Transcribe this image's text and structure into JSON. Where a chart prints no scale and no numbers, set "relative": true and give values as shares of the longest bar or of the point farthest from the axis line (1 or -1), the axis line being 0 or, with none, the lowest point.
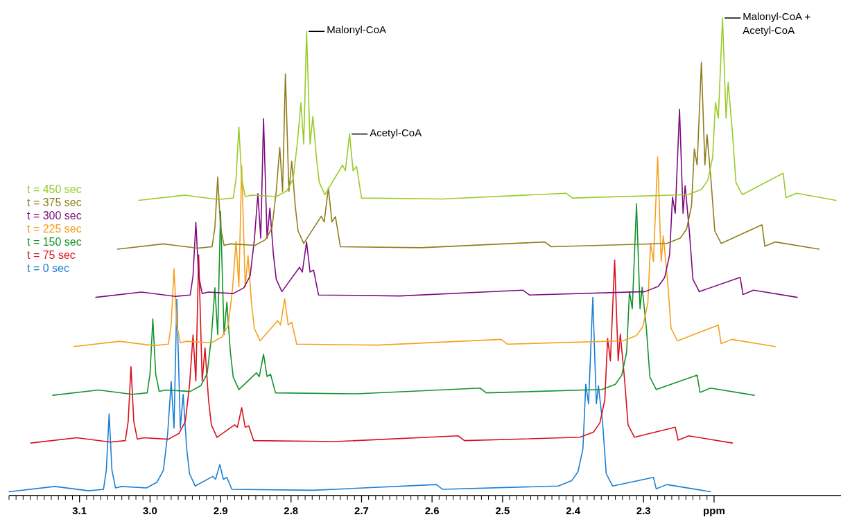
{
  "chart_data": {
    "type": "line",
    "relative": true,
    "legend": "left",
    "tick_labels": "x",
    "xlim": [
      3.2,
      2.02
    ],
    "xticks": [
      {
        "value": 3.2,
        "label": null
      },
      {
        "value": 3.19,
        "label": null
      },
      {
        "value": 3.18,
        "label": null
      },
      {
        "value": 3.17,
        "label": null
      },
      {
        "value": 3.16,
        "label": null
      },
      {
        "value": 3.15,
        "label": null
      },
      {
        "value": 3.14,
        "label": null
      },
      {
        "value": 3.13,
        "label": null
      },
      {
        "value": 3.12,
        "label": null
      },
      {
        "value": 3.11,
        "label": null
      },
      {
        "value": 3.1,
        "label": "3.1"
      },
      {
        "value": 3.09,
        "label": null
      },
      {
        "value": 3.08,
        "label": null
      },
      {
        "value": 3.07,
        "label": null
      },
      {
        "value": 3.06,
        "label": null
      },
      {
        "value": 3.05,
        "label": null
      },
      {
        "value": 3.04,
        "label": null
      },
      {
        "value": 3.03,
        "label": null
      },
      {
        "value": 3.02,
        "label": null
      },
      {
        "value": 3.01,
        "label": null
      },
      {
        "value": 3,
        "label": "3.0"
      },
      {
        "value": 2.99,
        "label": null
      },
      {
        "value": 2.98,
        "label": null
      },
      {
        "value": 2.97,
        "label": null
      },
      {
        "value": 2.96,
        "label": null
      },
      {
        "value": 2.95,
        "label": null
      },
      {
        "value": 2.94,
        "label": null
      },
      {
        "value": 2.93,
        "label": null
      },
      {
        "value": 2.92,
        "label": null
      },
      {
        "value": 2.91,
        "label": null
      },
      {
        "value": 2.9,
        "label": "2.9"
      },
      {
        "value": 2.89,
        "label": null
      },
      {
        "value": 2.88,
        "label": null
      },
      {
        "value": 2.87,
        "label": null
      },
      {
        "value": 2.86,
        "label": null
      },
      {
        "value": 2.85,
        "label": null
      },
      {
        "value": 2.84,
        "label": null
      },
      {
        "value": 2.83,
        "label": null
      },
      {
        "value": 2.82,
        "label": null
      },
      {
        "value": 2.81,
        "label": null
      },
      {
        "value": 2.8,
        "label": "2.8"
      },
      {
        "value": 2.79,
        "label": null
      },
      {
        "value": 2.78,
        "label": null
      },
      {
        "value": 2.77,
        "label": null
      },
      {
        "value": 2.76,
        "label": null
      },
      {
        "value": 2.75,
        "label": null
      },
      {
        "value": 2.74,
        "label": null
      },
      {
        "value": 2.73,
        "label": null
      },
      {
        "value": 2.72,
        "label": null
      },
      {
        "value": 2.71,
        "label": null
      },
      {
        "value": 2.7,
        "label": "2.7"
      },
      {
        "value": 2.69,
        "label": null
      },
      {
        "value": 2.68,
        "label": null
      },
      {
        "value": 2.67,
        "label": null
      },
      {
        "value": 2.66,
        "label": null
      },
      {
        "value": 2.65,
        "label": null
      },
      {
        "value": 2.64,
        "label": null
      },
      {
        "value": 2.63,
        "label": null
      },
      {
        "value": 2.62,
        "label": null
      },
      {
        "value": 2.61,
        "label": null
      },
      {
        "value": 2.6,
        "label": "2.6"
      },
      {
        "value": 2.59,
        "label": null
      },
      {
        "value": 2.58,
        "label": null
      },
      {
        "value": 2.57,
        "label": null
      },
      {
        "value": 2.56,
        "label": null
      },
      {
        "value": 2.55,
        "label": null
      },
      {
        "value": 2.54,
        "label": null
      },
      {
        "value": 2.53,
        "label": null
      },
      {
        "value": 2.52,
        "label": null
      },
      {
        "value": 2.51,
        "label": null
      },
      {
        "value": 2.5,
        "label": "2.5"
      },
      {
        "value": 2.49,
        "label": null
      },
      {
        "value": 2.48,
        "label": null
      },
      {
        "value": 2.47,
        "label": null
      },
      {
        "value": 2.46,
        "label": null
      },
      {
        "value": 2.45,
        "label": null
      },
      {
        "value": 2.44,
        "label": null
      },
      {
        "value": 2.43,
        "label": null
      },
      {
        "value": 2.42,
        "label": null
      },
      {
        "value": 2.41,
        "label": null
      },
      {
        "value": 2.4,
        "label": "2.4"
      },
      {
        "value": 2.39,
        "label": null
      },
      {
        "value": 2.38,
        "label": null
      },
      {
        "value": 2.37,
        "label": null
      },
      {
        "value": 2.36,
        "label": null
      },
      {
        "value": 2.35,
        "label": null
      },
      {
        "value": 2.34,
        "label": null
      },
      {
        "value": 2.33,
        "label": null
      },
      {
        "value": 2.32,
        "label": null
      },
      {
        "value": 2.31,
        "label": null
      },
      {
        "value": 2.3,
        "label": "2.3"
      },
      {
        "value": 2.29,
        "label": null
      },
      {
        "value": 2.28,
        "label": null
      },
      {
        "value": 2.27,
        "label": null
      },
      {
        "value": 2.26,
        "label": null
      },
      {
        "value": 2.25,
        "label": null
      },
      {
        "value": 2.24,
        "label": null
      },
      {
        "value": 2.23,
        "label": null
      },
      {
        "value": 2.22,
        "label": null
      },
      {
        "value": 2.21,
        "label": null
      },
      {
        "value": 2.2,
        "label": "ppm"
      }
    ],
    "annotations": [
      {
        "text": "Malonyl-CoA",
        "x": 2.778,
        "y": 0.972
      },
      {
        "text": "Acetyl-CoA",
        "x": 2.717,
        "y": 0.757
      },
      {
        "text": "Malonyl-CoA +\nAcetyl-CoA",
        "x": 2.188,
        "y": 1.0
      }
    ],
    "series": [
      {
        "name": "t = 0 sec",
        "color": "#1b7fd4",
        "x": [
          3.2,
          3.135,
          3.087,
          3.066,
          3.062,
          3.058,
          3.054,
          3.049,
          3.04,
          3.005,
          2.99,
          2.981,
          2.975,
          2.97,
          2.966,
          2.962,
          2.957,
          2.953,
          2.948,
          2.944,
          2.936,
          2.911,
          2.907,
          2.901,
          2.896,
          2.891,
          2.884,
          2.769,
          2.594,
          2.585,
          2.421,
          2.402,
          2.393,
          2.386,
          2.382,
          2.378,
          2.372,
          2.367,
          2.364,
          2.358,
          2.353,
          2.344,
          2.286,
          2.282,
          2.267,
          2.205
        ],
        "values": [
          0.008,
          0.019,
          0.01,
          0.013,
          0.053,
          0.171,
          0.053,
          0.016,
          0.019,
          0.016,
          0.028,
          0.053,
          0.129,
          0.239,
          0.141,
          0.411,
          0.141,
          0.212,
          0.098,
          0.046,
          0.02,
          0.04,
          0.034,
          0.065,
          0.034,
          0.038,
          0.013,
          0.011,
          0.023,
          0.013,
          0.02,
          0.031,
          0.05,
          0.098,
          0.233,
          0.192,
          0.415,
          0.192,
          0.23,
          0.151,
          0.046,
          0.02,
          0.038,
          0.014,
          0.023,
          0.008
        ]
      },
      {
        "name": "t = 75 sec",
        "color": "#d8101c",
        "x": [
          3.169,
          3.104,
          3.056,
          3.035,
          3.031,
          3.027,
          3.023,
          3.018,
          3.009,
          2.974,
          2.959,
          2.95,
          2.944,
          2.939,
          2.935,
          2.931,
          2.926,
          2.922,
          2.917,
          2.913,
          2.905,
          2.88,
          2.876,
          2.87,
          2.865,
          2.86,
          2.853,
          2.738,
          2.563,
          2.554,
          2.39,
          2.371,
          2.362,
          2.355,
          2.351,
          2.347,
          2.341,
          2.336,
          2.333,
          2.327,
          2.322,
          2.313,
          2.255,
          2.251,
          2.236,
          2.174
        ],
        "values": [
          0.11,
          0.121,
          0.112,
          0.115,
          0.155,
          0.27,
          0.155,
          0.118,
          0.121,
          0.118,
          0.13,
          0.155,
          0.231,
          0.336,
          0.24,
          0.504,
          0.24,
          0.309,
          0.2,
          0.148,
          0.122,
          0.148,
          0.143,
          0.184,
          0.143,
          0.146,
          0.115,
          0.113,
          0.125,
          0.115,
          0.122,
          0.133,
          0.152,
          0.2,
          0.329,
          0.282,
          0.493,
          0.282,
          0.338,
          0.244,
          0.148,
          0.122,
          0.143,
          0.116,
          0.125,
          0.11
        ]
      },
      {
        "name": "t = 150 sec",
        "color": "#13932a",
        "x": [
          3.138,
          3.073,
          3.025,
          3.004,
          3.0,
          2.996,
          2.992,
          2.987,
          2.978,
          2.943,
          2.928,
          2.919,
          2.913,
          2.908,
          2.904,
          2.9,
          2.895,
          2.891,
          2.886,
          2.882,
          2.874,
          2.849,
          2.845,
          2.839,
          2.834,
          2.829,
          2.822,
          2.707,
          2.532,
          2.523,
          2.359,
          2.34,
          2.331,
          2.324,
          2.32,
          2.316,
          2.31,
          2.305,
          2.302,
          2.296,
          2.291,
          2.282,
          2.224,
          2.22,
          2.205,
          2.143
        ],
        "values": [
          0.21,
          0.221,
          0.212,
          0.215,
          0.255,
          0.37,
          0.255,
          0.218,
          0.221,
          0.218,
          0.23,
          0.255,
          0.331,
          0.435,
          0.337,
          0.595,
          0.337,
          0.405,
          0.3,
          0.248,
          0.222,
          0.257,
          0.249,
          0.296,
          0.249,
          0.254,
          0.215,
          0.213,
          0.225,
          0.215,
          0.222,
          0.233,
          0.252,
          0.3,
          0.427,
          0.391,
          0.611,
          0.391,
          0.436,
          0.35,
          0.248,
          0.222,
          0.252,
          0.216,
          0.225,
          0.21
        ]
      },
      {
        "name": "t = 225 sec",
        "color": "#f7a01e",
        "x": [
          3.108,
          3.043,
          2.995,
          2.974,
          2.97,
          2.966,
          2.962,
          2.957,
          2.948,
          2.913,
          2.898,
          2.889,
          2.883,
          2.878,
          2.874,
          2.87,
          2.865,
          2.861,
          2.856,
          2.852,
          2.844,
          2.819,
          2.815,
          2.809,
          2.804,
          2.799,
          2.792,
          2.677,
          2.502,
          2.493,
          2.329,
          2.31,
          2.301,
          2.294,
          2.29,
          2.286,
          2.28,
          2.275,
          2.272,
          2.266,
          2.261,
          2.252,
          2.194,
          2.19,
          2.175,
          2.113
        ],
        "values": [
          0.312,
          0.323,
          0.314,
          0.317,
          0.357,
          0.475,
          0.357,
          0.32,
          0.323,
          0.32,
          0.332,
          0.357,
          0.433,
          0.532,
          0.437,
          0.691,
          0.437,
          0.502,
          0.402,
          0.35,
          0.324,
          0.366,
          0.357,
          0.412,
          0.357,
          0.363,
          0.317,
          0.315,
          0.327,
          0.317,
          0.324,
          0.335,
          0.354,
          0.402,
          0.528,
          0.49,
          0.709,
          0.49,
          0.544,
          0.451,
          0.35,
          0.324,
          0.357,
          0.318,
          0.327,
          0.312
        ]
      },
      {
        "name": "t = 300 sec",
        "color": "#7d0c7f",
        "x": [
          3.077,
          3.012,
          2.964,
          2.943,
          2.939,
          2.935,
          2.931,
          2.926,
          2.917,
          2.882,
          2.867,
          2.858,
          2.852,
          2.847,
          2.843,
          2.839,
          2.834,
          2.83,
          2.825,
          2.821,
          2.813,
          2.788,
          2.784,
          2.778,
          2.773,
          2.768,
          2.761,
          2.646,
          2.471,
          2.462,
          2.298,
          2.279,
          2.27,
          2.263,
          2.259,
          2.255,
          2.249,
          2.244,
          2.241,
          2.235,
          2.23,
          2.221,
          2.163,
          2.159,
          2.144,
          2.082
        ],
        "values": [
          0.415,
          0.426,
          0.417,
          0.42,
          0.46,
          0.572,
          0.46,
          0.423,
          0.426,
          0.423,
          0.435,
          0.46,
          0.536,
          0.632,
          0.539,
          0.789,
          0.539,
          0.602,
          0.505,
          0.453,
          0.427,
          0.478,
          0.468,
          0.531,
          0.468,
          0.472,
          0.42,
          0.418,
          0.43,
          0.42,
          0.427,
          0.438,
          0.457,
          0.505,
          0.625,
          0.591,
          0.809,
          0.591,
          0.649,
          0.552,
          0.453,
          0.427,
          0.457,
          0.421,
          0.43,
          0.415
        ]
      },
      {
        "name": "t = 375 sec",
        "color": "#8f7d1c",
        "x": [
          3.046,
          2.981,
          2.933,
          2.912,
          2.908,
          2.904,
          2.9,
          2.895,
          2.886,
          2.851,
          2.836,
          2.827,
          2.821,
          2.816,
          2.812,
          2.808,
          2.803,
          2.799,
          2.794,
          2.79,
          2.782,
          2.757,
          2.753,
          2.747,
          2.742,
          2.737,
          2.73,
          2.615,
          2.44,
          2.431,
          2.267,
          2.248,
          2.239,
          2.232,
          2.228,
          2.224,
          2.218,
          2.213,
          2.21,
          2.204,
          2.199,
          2.19,
          2.132,
          2.128,
          2.113,
          2.051
        ],
        "values": [
          0.516,
          0.527,
          0.518,
          0.521,
          0.561,
          0.667,
          0.561,
          0.524,
          0.527,
          0.524,
          0.536,
          0.561,
          0.637,
          0.729,
          0.637,
          0.883,
          0.637,
          0.7,
          0.606,
          0.554,
          0.528,
          0.585,
          0.573,
          0.644,
          0.573,
          0.584,
          0.521,
          0.519,
          0.531,
          0.521,
          0.528,
          0.539,
          0.558,
          0.606,
          0.726,
          0.692,
          0.907,
          0.692,
          0.756,
          0.653,
          0.554,
          0.528,
          0.567,
          0.522,
          0.531,
          0.516
        ]
      },
      {
        "name": "t = 450 sec",
        "color": "#9acb2a",
        "x": [
          3.016,
          2.951,
          2.903,
          2.882,
          2.878,
          2.874,
          2.87,
          2.865,
          2.856,
          2.821,
          2.806,
          2.797,
          2.791,
          2.786,
          2.782,
          2.778,
          2.773,
          2.769,
          2.764,
          2.76,
          2.752,
          2.727,
          2.723,
          2.717,
          2.712,
          2.707,
          2.7,
          2.585,
          2.41,
          2.401,
          2.237,
          2.218,
          2.209,
          2.202,
          2.198,
          2.194,
          2.188,
          2.183,
          2.18,
          2.174,
          2.169,
          2.16,
          2.102,
          2.098,
          2.083,
          2.027
        ],
        "values": [
          0.618,
          0.629,
          0.62,
          0.623,
          0.663,
          0.772,
          0.663,
          0.626,
          0.629,
          0.626,
          0.638,
          0.663,
          0.739,
          0.823,
          0.736,
          0.972,
          0.736,
          0.794,
          0.708,
          0.656,
          0.63,
          0.692,
          0.68,
          0.757,
          0.68,
          0.689,
          0.623,
          0.621,
          0.633,
          0.623,
          0.63,
          0.641,
          0.66,
          0.708,
          0.823,
          0.79,
          1.0,
          0.79,
          0.865,
          0.761,
          0.656,
          0.63,
          0.675,
          0.624,
          0.633,
          0.618
        ]
      }
    ]
  }
}
